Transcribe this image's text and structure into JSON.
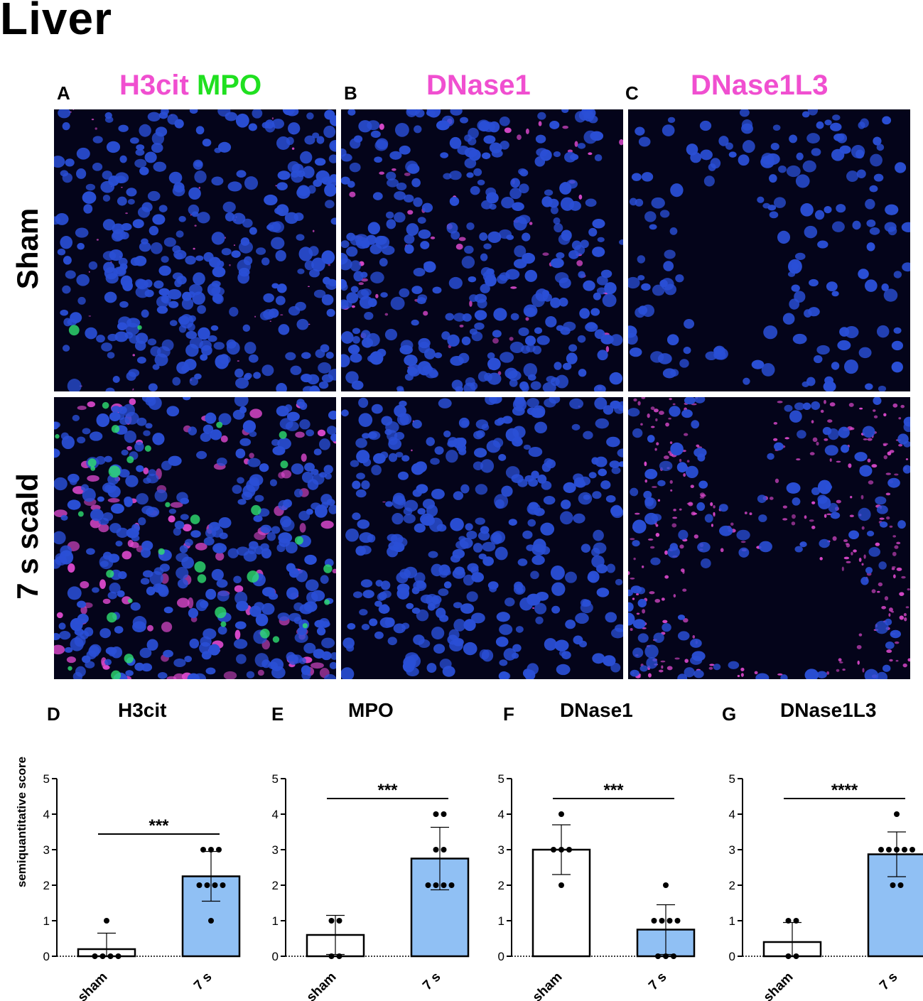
{
  "page_title": "Liver",
  "columns": [
    {
      "letter": "A",
      "title_parts": [
        {
          "text": "H3cit",
          "color": "#f04fd0"
        },
        {
          "text": "MPO",
          "color": "#20e020"
        }
      ]
    },
    {
      "letter": "B",
      "title_parts": [
        {
          "text": "DNase1",
          "color": "#f04fd0"
        }
      ]
    },
    {
      "letter": "C",
      "title_parts": [
        {
          "text": "DNase1L3",
          "color": "#f04fd0"
        }
      ]
    }
  ],
  "rows": [
    {
      "label": "Sham"
    },
    {
      "label": "7 s scald"
    }
  ],
  "colors": {
    "nuclei": "#2a4fd6",
    "magenta_stain": "#e04ad0",
    "green_stain": "#30e070",
    "sham_bar": "#ffffff",
    "scald_bar": "#90c0f4"
  },
  "y_axis_label": "semiquantitative score",
  "chart_data": [
    {
      "letter": "D",
      "title": "H3cit",
      "type": "bar",
      "categories": [
        "sham",
        "7 s"
      ],
      "values": [
        0.2,
        2.25
      ],
      "error": [
        0.45,
        0.7
      ],
      "points": [
        [
          0,
          0,
          0,
          0,
          1
        ],
        [
          1,
          2,
          2,
          3,
          3,
          3,
          2,
          2
        ]
      ],
      "ylim": [
        0,
        5
      ],
      "yticks": [
        0,
        1,
        2,
        3,
        4,
        5
      ],
      "significance": "***"
    },
    {
      "letter": "E",
      "title": "MPO",
      "type": "bar",
      "categories": [
        "sham",
        "7 s"
      ],
      "values": [
        0.6,
        2.75
      ],
      "error": [
        0.55,
        0.88
      ],
      "points": [
        [
          0,
          1,
          1,
          0
        ],
        [
          2,
          2,
          2,
          3,
          3,
          4,
          4,
          2
        ]
      ],
      "ylim": [
        0,
        5
      ],
      "yticks": [
        0,
        1,
        2,
        3,
        4,
        5
      ],
      "significance": "***"
    },
    {
      "letter": "F",
      "title": "DNase1",
      "type": "bar",
      "categories": [
        "sham",
        "7 s"
      ],
      "values": [
        3.0,
        0.75
      ],
      "error": [
        0.7,
        0.7
      ],
      "points": [
        [
          3,
          3,
          4,
          3,
          2
        ],
        [
          0,
          1,
          1,
          1,
          1,
          0,
          2,
          0
        ]
      ],
      "ylim": [
        0,
        5
      ],
      "yticks": [
        0,
        1,
        2,
        3,
        4,
        5
      ],
      "significance": "***"
    },
    {
      "letter": "G",
      "title": "DNase1L3",
      "type": "bar",
      "categories": [
        "sham",
        "7 s"
      ],
      "values": [
        0.4,
        2.87
      ],
      "error": [
        0.55,
        0.63
      ],
      "points": [
        [
          1,
          1,
          0,
          0
        ],
        [
          2,
          3,
          3,
          3,
          3,
          3,
          4,
          2
        ]
      ],
      "ylim": [
        0,
        5
      ],
      "yticks": [
        0,
        1,
        2,
        3,
        4,
        5
      ],
      "significance": "****"
    }
  ]
}
